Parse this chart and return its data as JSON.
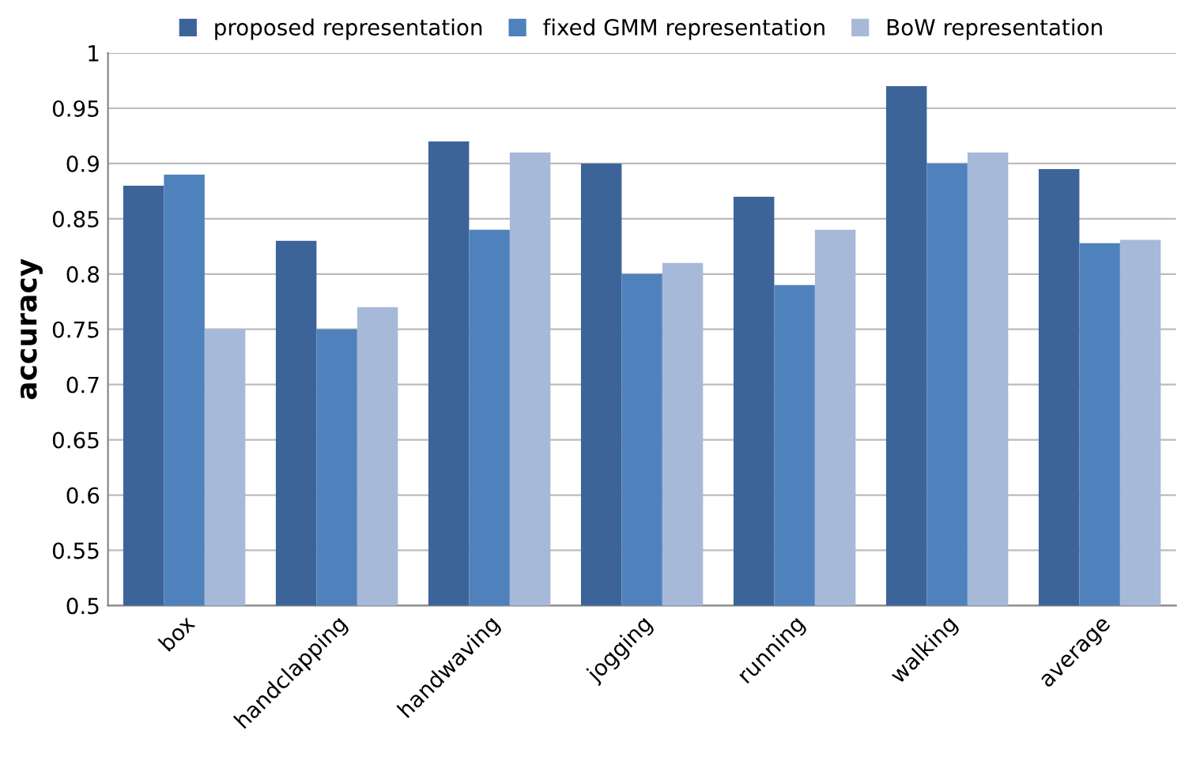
{
  "chart_data": {
    "type": "bar",
    "ylabel": "accuracy",
    "categories": [
      "box",
      "handclapping",
      "handwaving",
      "jogging",
      "running",
      "walking",
      "average"
    ],
    "series": [
      {
        "name": "proposed representation",
        "color": "#3c6499",
        "values": [
          0.88,
          0.83,
          0.92,
          0.9,
          0.87,
          0.97,
          0.895
        ]
      },
      {
        "name": "fixed GMM representation",
        "color": "#4f81bd",
        "values": [
          0.89,
          0.75,
          0.84,
          0.8,
          0.79,
          0.9,
          0.828
        ]
      },
      {
        "name": "BoW representation",
        "color": "#a7b9d9",
        "values": [
          0.75,
          0.77,
          0.91,
          0.81,
          0.84,
          0.91,
          0.831
        ]
      }
    ],
    "ylim": [
      0.5,
      1
    ],
    "yticks": [
      0.5,
      0.55,
      0.6,
      0.65,
      0.7,
      0.75,
      0.8,
      0.85,
      0.9,
      0.95,
      1
    ],
    "grid": "y",
    "legend": "top"
  }
}
